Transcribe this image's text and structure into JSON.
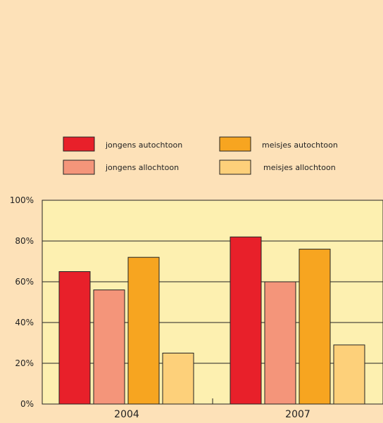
{
  "chart_data": {
    "type": "bar",
    "categories": [
      "2004",
      "2007"
    ],
    "series": [
      {
        "name": "jongens autochtoon",
        "values": [
          65,
          82
        ],
        "color": "#e8202a"
      },
      {
        "name": "jongens allochtoon",
        "values": [
          56,
          60
        ],
        "color": "#f4957a"
      },
      {
        "name": "meisjes autochtoon",
        "values": [
          72,
          76
        ],
        "color": "#f7a520"
      },
      {
        "name": "meisjes allochtoon",
        "values": [
          25,
          29
        ],
        "color": "#fdd07a"
      }
    ],
    "ylim": [
      0,
      100
    ],
    "yticks": [
      "0%",
      "20%",
      "40%",
      "60%",
      "80%",
      "100%"
    ],
    "title": "",
    "xlabel": "",
    "ylabel": "",
    "grid": true,
    "legend_position": "top",
    "plot_background": "#fdf0b0",
    "page_background": "#fde1b8"
  }
}
